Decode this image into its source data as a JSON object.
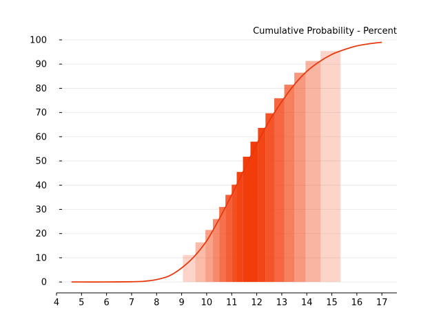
{
  "chart_data": {
    "type": "line",
    "title": "Cumulative Probability - Percent",
    "xlabel": "",
    "ylabel": "",
    "xlim": [
      4,
      17.6
    ],
    "ylim": [
      -4.5,
      100
    ],
    "x_ticks": [
      4,
      5,
      6,
      7,
      8,
      9,
      10,
      11,
      12,
      13,
      14,
      15,
      16,
      17
    ],
    "y_ticks": [
      0,
      10,
      20,
      30,
      40,
      50,
      60,
      70,
      80,
      90,
      100
    ],
    "grid": "horizontal",
    "line_color": "#e8380d",
    "band_color": "#f23c0a",
    "series": [
      {
        "x": [
          4.6,
          5.0,
          6.0,
          7.0,
          7.5,
          8.0,
          8.5,
          9.0,
          9.5,
          10.0,
          10.5,
          11.0,
          11.5,
          12.0,
          12.5,
          13.0,
          13.5,
          14.0,
          14.5,
          15.0,
          15.5,
          16.0,
          16.5,
          17.0
        ],
        "values": [
          0.0,
          0.0,
          0.0,
          0.1,
          0.3,
          1.0,
          2.5,
          5.8,
          10.5,
          17.0,
          26.0,
          36.0,
          46.5,
          57.0,
          66.5,
          74.5,
          81.5,
          87.0,
          91.0,
          94.0,
          96.0,
          97.5,
          98.4,
          99.0
        ]
      }
    ],
    "bands": [
      {
        "x0": 9.05,
        "x1": 9.55,
        "opacity": 0.22
      },
      {
        "x0": 9.55,
        "x1": 9.95,
        "opacity": 0.35
      },
      {
        "x0": 9.95,
        "x1": 10.25,
        "opacity": 0.48
      },
      {
        "x0": 10.25,
        "x1": 10.5,
        "opacity": 0.6
      },
      {
        "x0": 10.5,
        "x1": 10.75,
        "opacity": 0.72
      },
      {
        "x0": 10.75,
        "x1": 11.0,
        "opacity": 0.82
      },
      {
        "x0": 11.0,
        "x1": 11.2,
        "opacity": 0.9
      },
      {
        "x0": 11.2,
        "x1": 11.45,
        "opacity": 0.96
      },
      {
        "x0": 11.45,
        "x1": 11.75,
        "opacity": 1.0
      },
      {
        "x0": 11.75,
        "x1": 12.05,
        "opacity": 1.0
      },
      {
        "x0": 12.05,
        "x1": 12.35,
        "opacity": 0.95
      },
      {
        "x0": 12.35,
        "x1": 12.7,
        "opacity": 0.88
      },
      {
        "x0": 12.7,
        "x1": 13.1,
        "opacity": 0.78
      },
      {
        "x0": 13.1,
        "x1": 13.5,
        "opacity": 0.66
      },
      {
        "x0": 13.5,
        "x1": 13.95,
        "opacity": 0.52
      },
      {
        "x0": 13.95,
        "x1": 14.55,
        "opacity": 0.38
      },
      {
        "x0": 14.55,
        "x1": 15.35,
        "opacity": 0.22
      }
    ]
  }
}
